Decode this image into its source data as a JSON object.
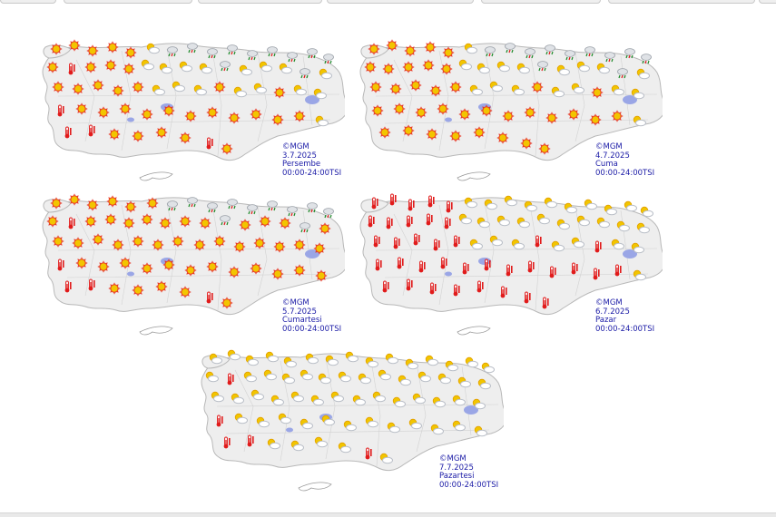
{
  "maps": [
    {
      "copyright": "©MGM",
      "date": "3.7.2025",
      "day": "Persembe",
      "time_range": "00:00-24:00TSI"
    },
    {
      "copyright": "©MGM",
      "date": "4.7.2025",
      "day": "Cuma",
      "time_range": "00:00-24:00TSI"
    },
    {
      "copyright": "©MGM",
      "date": "5.7.2025",
      "day": "Cumartesi",
      "time_range": "00:00-24:00TSI"
    },
    {
      "copyright": "©MGM",
      "date": "6.7.2025",
      "day": "Pazar",
      "time_range": "00:00-24:00TSI"
    },
    {
      "copyright": "©MGM",
      "date": "7.7.2025",
      "day": "Pazartesi",
      "time_range": "00:00-24:00TSI"
    }
  ],
  "icons": [
    "sun-icon",
    "partly-cloudy-icon",
    "hot-thermometer-icon",
    "rain-shower-icon"
  ],
  "colors": {
    "sun": "#f2c500",
    "sun_ring": "#e8321e",
    "hot": "#e11b1b",
    "cloud": "#b9bec7",
    "lake": "#9aa6e6",
    "land": "#eeeeee",
    "border": "#b8b8b8",
    "caption": "#1a1aa6"
  }
}
